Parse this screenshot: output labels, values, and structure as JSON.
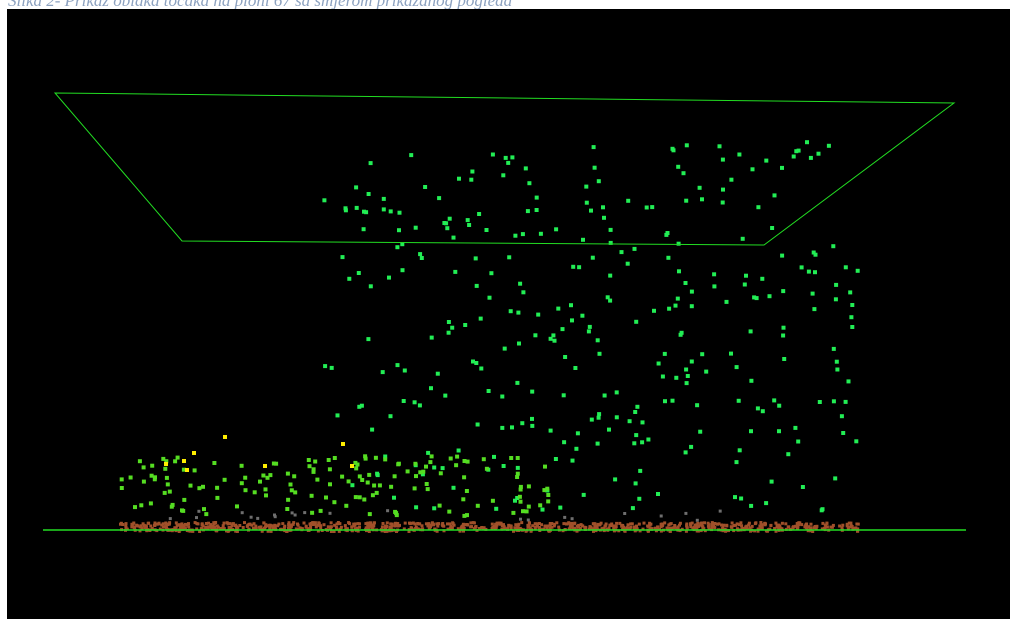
{
  "figure": {
    "caption": "Slika 2- Prikaz oblaka točaka na plohi 67 sa smjerom prikazanog pogleda"
  },
  "viewer": {
    "background_color": "#000000",
    "frame_color": "#22dd22",
    "point_colors": {
      "canopy": "#22ee55",
      "understory": "#55dd22",
      "yellow": "#ffee00",
      "ground": "#a0502a",
      "grey": "#6e6e6e"
    }
  }
}
